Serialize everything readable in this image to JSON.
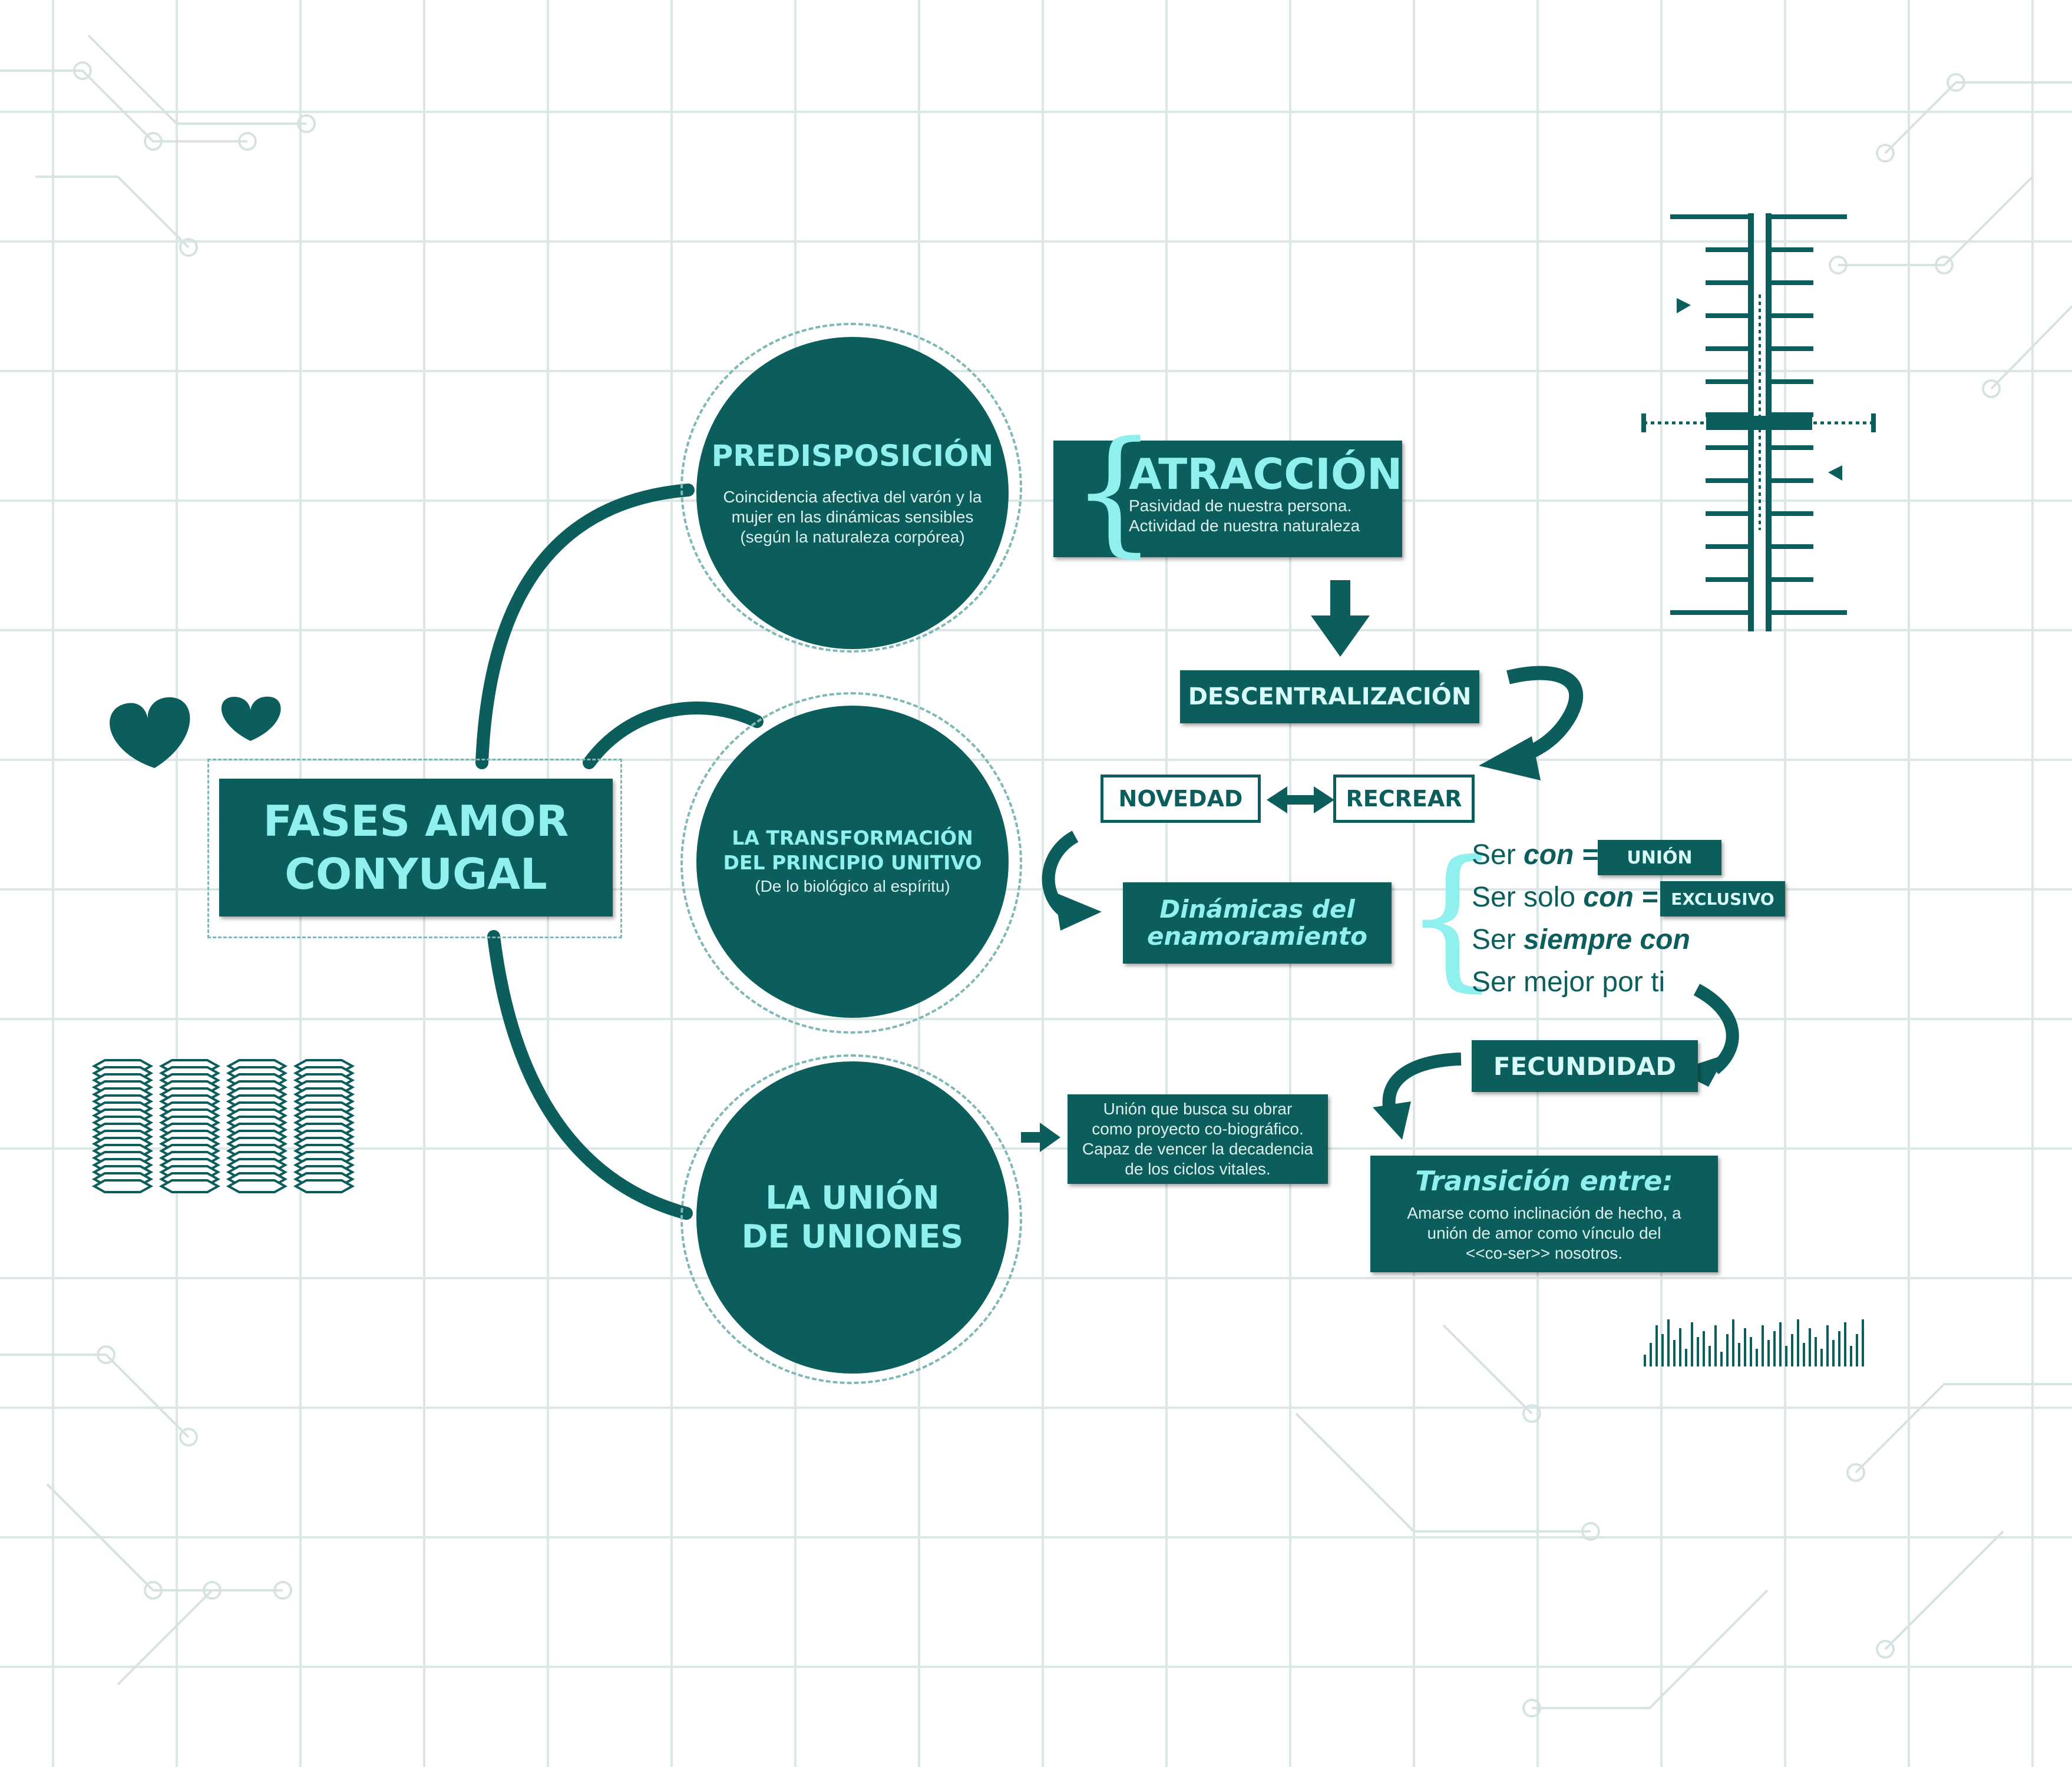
{
  "colors": {
    "teal": "#0b5e5c",
    "accent": "#8ff0ee",
    "light": "#d8fbfa",
    "grid": "#dde6e6"
  },
  "center": {
    "title_line1": "FASES AMOR",
    "title_line2": "CONYUGAL"
  },
  "phases": [
    {
      "title": "PREDISPOSICIÓN",
      "body": [
        "Coincidencia afectiva del varón y la",
        "mujer en las dinámicas sensibles",
        "(según la naturaleza corpórea)"
      ]
    },
    {
      "title_line1": "LA TRANSFORMACIÓN",
      "title_line2": "DEL PRINCIPIO UNITIVO",
      "body": "(De lo biológico al espíritu)"
    },
    {
      "title_line1": "LA UNIÓN",
      "title_line2": "DE UNIONES"
    }
  ],
  "atraccion": {
    "title": "ATRACCIÓN",
    "lines": [
      "Pasividad de nuestra persona.",
      "Actividad de nuestra naturaleza"
    ]
  },
  "descentralizacion": "DESCENTRALIZACIÓN",
  "novedad": "NOVEDAD",
  "recrear": "RECREAR",
  "dinamicas": {
    "line1": "Dinámicas del",
    "line2": "enamoramiento"
  },
  "ser_list": [
    {
      "prefix": "Ser ",
      "emph": "con =",
      "badge": "UNIÓN"
    },
    {
      "prefix": "Ser solo ",
      "emph": "con =",
      "badge": "EXCLUSIVO"
    },
    {
      "prefix": "Ser ",
      "emph": "siempre con",
      "badge": ""
    },
    {
      "prefix": "Ser mejor por ti",
      "emph": "",
      "badge": ""
    }
  ],
  "fecundidad": "FECUNDIDAD",
  "union_desc": [
    "Unión que busca su obrar",
    "como proyecto co-biográfico.",
    "Capaz de vencer la decadencia",
    "de los ciclos vitales."
  ],
  "transicion": {
    "title": "Transición entre:",
    "lines": [
      "Amarse como inclinación de hecho, a",
      "unión de amor como vínculo del",
      "<<co-ser>> nosotros."
    ]
  },
  "icons": [
    "heart-icon",
    "heart-icon",
    "hexagon-stack-icon",
    "ruler-scale-icon",
    "barcode-icon",
    "curved-arrow-icon",
    "double-arrow-icon",
    "down-arrow-icon"
  ]
}
